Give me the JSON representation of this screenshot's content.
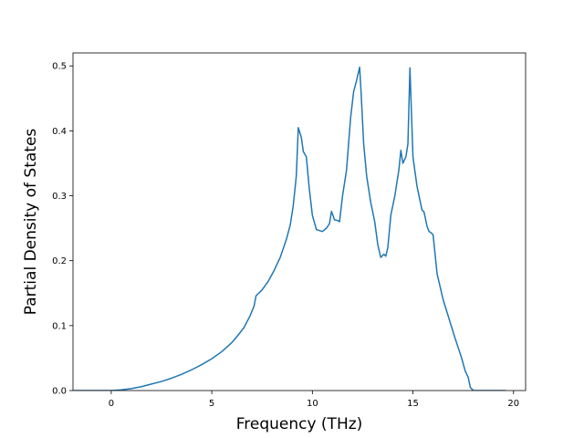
{
  "chart_data": {
    "type": "line",
    "title": "",
    "xlabel": "Frequency (THz)",
    "ylabel": "Partial Density of States",
    "xlim": [
      -1.9,
      20.6
    ],
    "ylim": [
      0,
      0.52
    ],
    "xticks": [
      0,
      5,
      10,
      15,
      20
    ],
    "yticks": [
      0.0,
      0.1,
      0.2,
      0.3,
      0.4,
      0.5
    ],
    "xtick_labels": [
      "0",
      "5",
      "10",
      "15",
      "20"
    ],
    "ytick_labels": [
      "0.0",
      "0.1",
      "0.2",
      "0.3",
      "0.4",
      "0.5"
    ],
    "grid": false,
    "legend": "none",
    "line_color": "#1f77b4",
    "series": [
      {
        "x": [
          -1.85,
          -1.0,
          0.0,
          0.5,
          1.0,
          1.5,
          2.0,
          2.5,
          3.0,
          3.5,
          4.0,
          4.5,
          5.0,
          5.5,
          6.0,
          6.3,
          6.6,
          6.9,
          7.1,
          7.2,
          7.5,
          7.8,
          8.1,
          8.4,
          8.7,
          8.9,
          9.05,
          9.2,
          9.3,
          9.45,
          9.55,
          9.7,
          9.85,
          10.0,
          10.2,
          10.5,
          10.7,
          10.85,
          10.95,
          11.1,
          11.25,
          11.35,
          11.5,
          11.7,
          11.9,
          12.05,
          12.2,
          12.35,
          12.42,
          12.55,
          12.7,
          12.9,
          13.1,
          13.25,
          13.4,
          13.55,
          13.65,
          13.75,
          13.9,
          14.1,
          14.3,
          14.4,
          14.5,
          14.65,
          14.75,
          14.85,
          15.0,
          15.2,
          15.45,
          15.55,
          15.7,
          15.8,
          15.9,
          16.0,
          16.2,
          16.5,
          16.8,
          17.1,
          17.4,
          17.6,
          17.75,
          17.85,
          18.0,
          18.5,
          19.0,
          19.6
        ],
        "y": [
          0.0,
          0.0,
          0.0,
          0.001,
          0.003,
          0.006,
          0.01,
          0.014,
          0.019,
          0.025,
          0.032,
          0.04,
          0.049,
          0.06,
          0.074,
          0.085,
          0.097,
          0.115,
          0.13,
          0.146,
          0.155,
          0.168,
          0.185,
          0.205,
          0.232,
          0.255,
          0.285,
          0.33,
          0.405,
          0.39,
          0.368,
          0.36,
          0.31,
          0.27,
          0.248,
          0.245,
          0.25,
          0.257,
          0.276,
          0.263,
          0.262,
          0.26,
          0.3,
          0.34,
          0.42,
          0.46,
          0.478,
          0.498,
          0.46,
          0.38,
          0.33,
          0.29,
          0.26,
          0.225,
          0.205,
          0.21,
          0.207,
          0.22,
          0.27,
          0.3,
          0.34,
          0.37,
          0.35,
          0.36,
          0.38,
          0.497,
          0.36,
          0.315,
          0.278,
          0.275,
          0.253,
          0.245,
          0.243,
          0.24,
          0.18,
          0.14,
          0.11,
          0.08,
          0.052,
          0.03,
          0.02,
          0.005,
          0.0,
          0.0,
          0.0,
          0.0
        ]
      }
    ]
  }
}
